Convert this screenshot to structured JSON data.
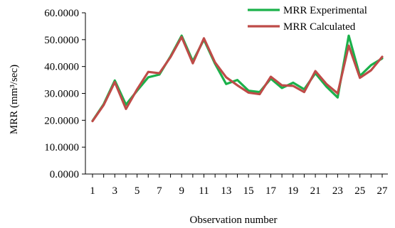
{
  "chart_data": {
    "type": "line",
    "xlabel": "Observation number",
    "ylabel": "MRR (mm³/sec)",
    "ylim": [
      0,
      60
    ],
    "y_ticks": [
      "0.0000",
      "10.0000",
      "20.0000",
      "30.0000",
      "40.0000",
      "50.0000",
      "60.0000"
    ],
    "y_tick_values": [
      0,
      10,
      20,
      30,
      40,
      50,
      60
    ],
    "x": [
      1,
      2,
      3,
      4,
      5,
      6,
      7,
      8,
      9,
      10,
      11,
      12,
      13,
      14,
      15,
      16,
      17,
      18,
      19,
      20,
      21,
      22,
      23,
      24,
      25,
      26,
      27
    ],
    "x_tick_labels": [
      "1",
      "3",
      "5",
      "7",
      "9",
      "11",
      "13",
      "15",
      "17",
      "19",
      "21",
      "23",
      "25",
      "27"
    ],
    "x_tick_values": [
      1,
      3,
      5,
      7,
      9,
      11,
      13,
      15,
      17,
      19,
      21,
      23,
      25,
      27
    ],
    "grid": false,
    "legend": "top-right",
    "series": [
      {
        "name": "MRR Experimental",
        "color": "#1bb14b",
        "values": [
          19.8,
          26.0,
          34.8,
          25.8,
          31.0,
          36.0,
          37.0,
          43.8,
          51.5,
          42.0,
          50.0,
          41.0,
          33.5,
          35.0,
          31.0,
          30.5,
          35.5,
          32.0,
          34.0,
          31.5,
          37.5,
          32.5,
          28.5,
          51.5,
          36.5,
          40.5,
          43.0
        ]
      },
      {
        "name": "MRR Calculated",
        "color": "#be4b48",
        "values": [
          19.7,
          25.7,
          34.2,
          24.2,
          31.5,
          38.0,
          37.5,
          43.5,
          51.0,
          41.2,
          50.5,
          41.5,
          36.0,
          33.0,
          30.3,
          29.7,
          36.2,
          33.0,
          32.8,
          30.5,
          38.3,
          33.5,
          30.0,
          47.8,
          35.8,
          38.6,
          43.6
        ]
      }
    ]
  }
}
